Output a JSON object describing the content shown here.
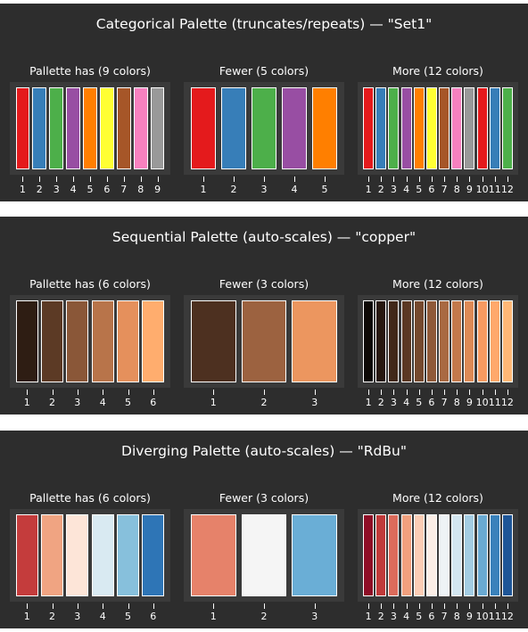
{
  "chart_data": [
    {
      "type": "bar",
      "title": "Categorical Palette (truncates/repeats) — \"Set1\"",
      "panels": [
        {
          "title": "Pallette has (9 colors)",
          "categories": [
            "1",
            "2",
            "3",
            "4",
            "5",
            "6",
            "7",
            "8",
            "9"
          ],
          "colors": [
            "#e41a1c",
            "#377eb8",
            "#4daf4a",
            "#984ea3",
            "#ff7f00",
            "#ffff33",
            "#a65628",
            "#f781bf",
            "#999999"
          ]
        },
        {
          "title": "Fewer (5 colors)",
          "categories": [
            "1",
            "2",
            "3",
            "4",
            "5"
          ],
          "colors": [
            "#e41a1c",
            "#377eb8",
            "#4daf4a",
            "#984ea3",
            "#ff7f00"
          ]
        },
        {
          "title": "More (12 colors)",
          "categories": [
            "1",
            "2",
            "3",
            "4",
            "5",
            "6",
            "7",
            "8",
            "9",
            "10",
            "11",
            "12"
          ],
          "colors": [
            "#e41a1c",
            "#377eb8",
            "#4daf4a",
            "#984ea3",
            "#ff7f00",
            "#ffff33",
            "#a65628",
            "#f781bf",
            "#999999",
            "#e41a1c",
            "#377eb8",
            "#4daf4a"
          ]
        }
      ]
    },
    {
      "type": "bar",
      "title": "Sequential Palette (auto-scales) — \"copper\"",
      "panels": [
        {
          "title": "Pallette has (6 colors)",
          "categories": [
            "1",
            "2",
            "3",
            "4",
            "5",
            "6"
          ],
          "colors": [
            "#2e1d13",
            "#5c3a25",
            "#8a5738",
            "#b8744a",
            "#e5905c",
            "#ffad6e"
          ]
        },
        {
          "title": "Fewer (3 colors)",
          "categories": [
            "1",
            "2",
            "3"
          ],
          "colors": [
            "#4d3020",
            "#9c6240",
            "#ec965f"
          ]
        },
        {
          "title": "More (12 colors)",
          "categories": [
            "1",
            "2",
            "3",
            "4",
            "5",
            "6",
            "7",
            "8",
            "9",
            "10",
            "11",
            "12"
          ],
          "colors": [
            "#0d0805",
            "#27180f",
            "#412819",
            "#5b3823",
            "#75492e",
            "#8f5938",
            "#a96942",
            "#c3794c",
            "#dd8a56",
            "#f79a61",
            "#ffa96b",
            "#ffb776"
          ]
        }
      ]
    },
    {
      "type": "bar",
      "title": "Diverging Palette (auto-scales) — \"RdBu\"",
      "panels": [
        {
          "title": "Pallette has (6 colors)",
          "categories": [
            "1",
            "2",
            "3",
            "4",
            "5",
            "6"
          ],
          "colors": [
            "#c43c3c",
            "#f0a482",
            "#fde5d8",
            "#d9eaf2",
            "#87c0dc",
            "#2e75b6"
          ]
        },
        {
          "title": "Fewer (3 colors)",
          "categories": [
            "1",
            "2",
            "3"
          ],
          "colors": [
            "#e6826a",
            "#f5f5f5",
            "#6aaed6"
          ]
        },
        {
          "title": "More (12 colors)",
          "categories": [
            "1",
            "2",
            "3",
            "4",
            "5",
            "6",
            "7",
            "8",
            "9",
            "10",
            "11",
            "12"
          ],
          "colors": [
            "#8e0e26",
            "#c03a3a",
            "#dc6b5b",
            "#f1a07e",
            "#fbcdb5",
            "#fbeee6",
            "#eef3f6",
            "#d3e6f0",
            "#a4cde3",
            "#6aaad2",
            "#3a82bb",
            "#1f5697"
          ]
        }
      ]
    }
  ]
}
